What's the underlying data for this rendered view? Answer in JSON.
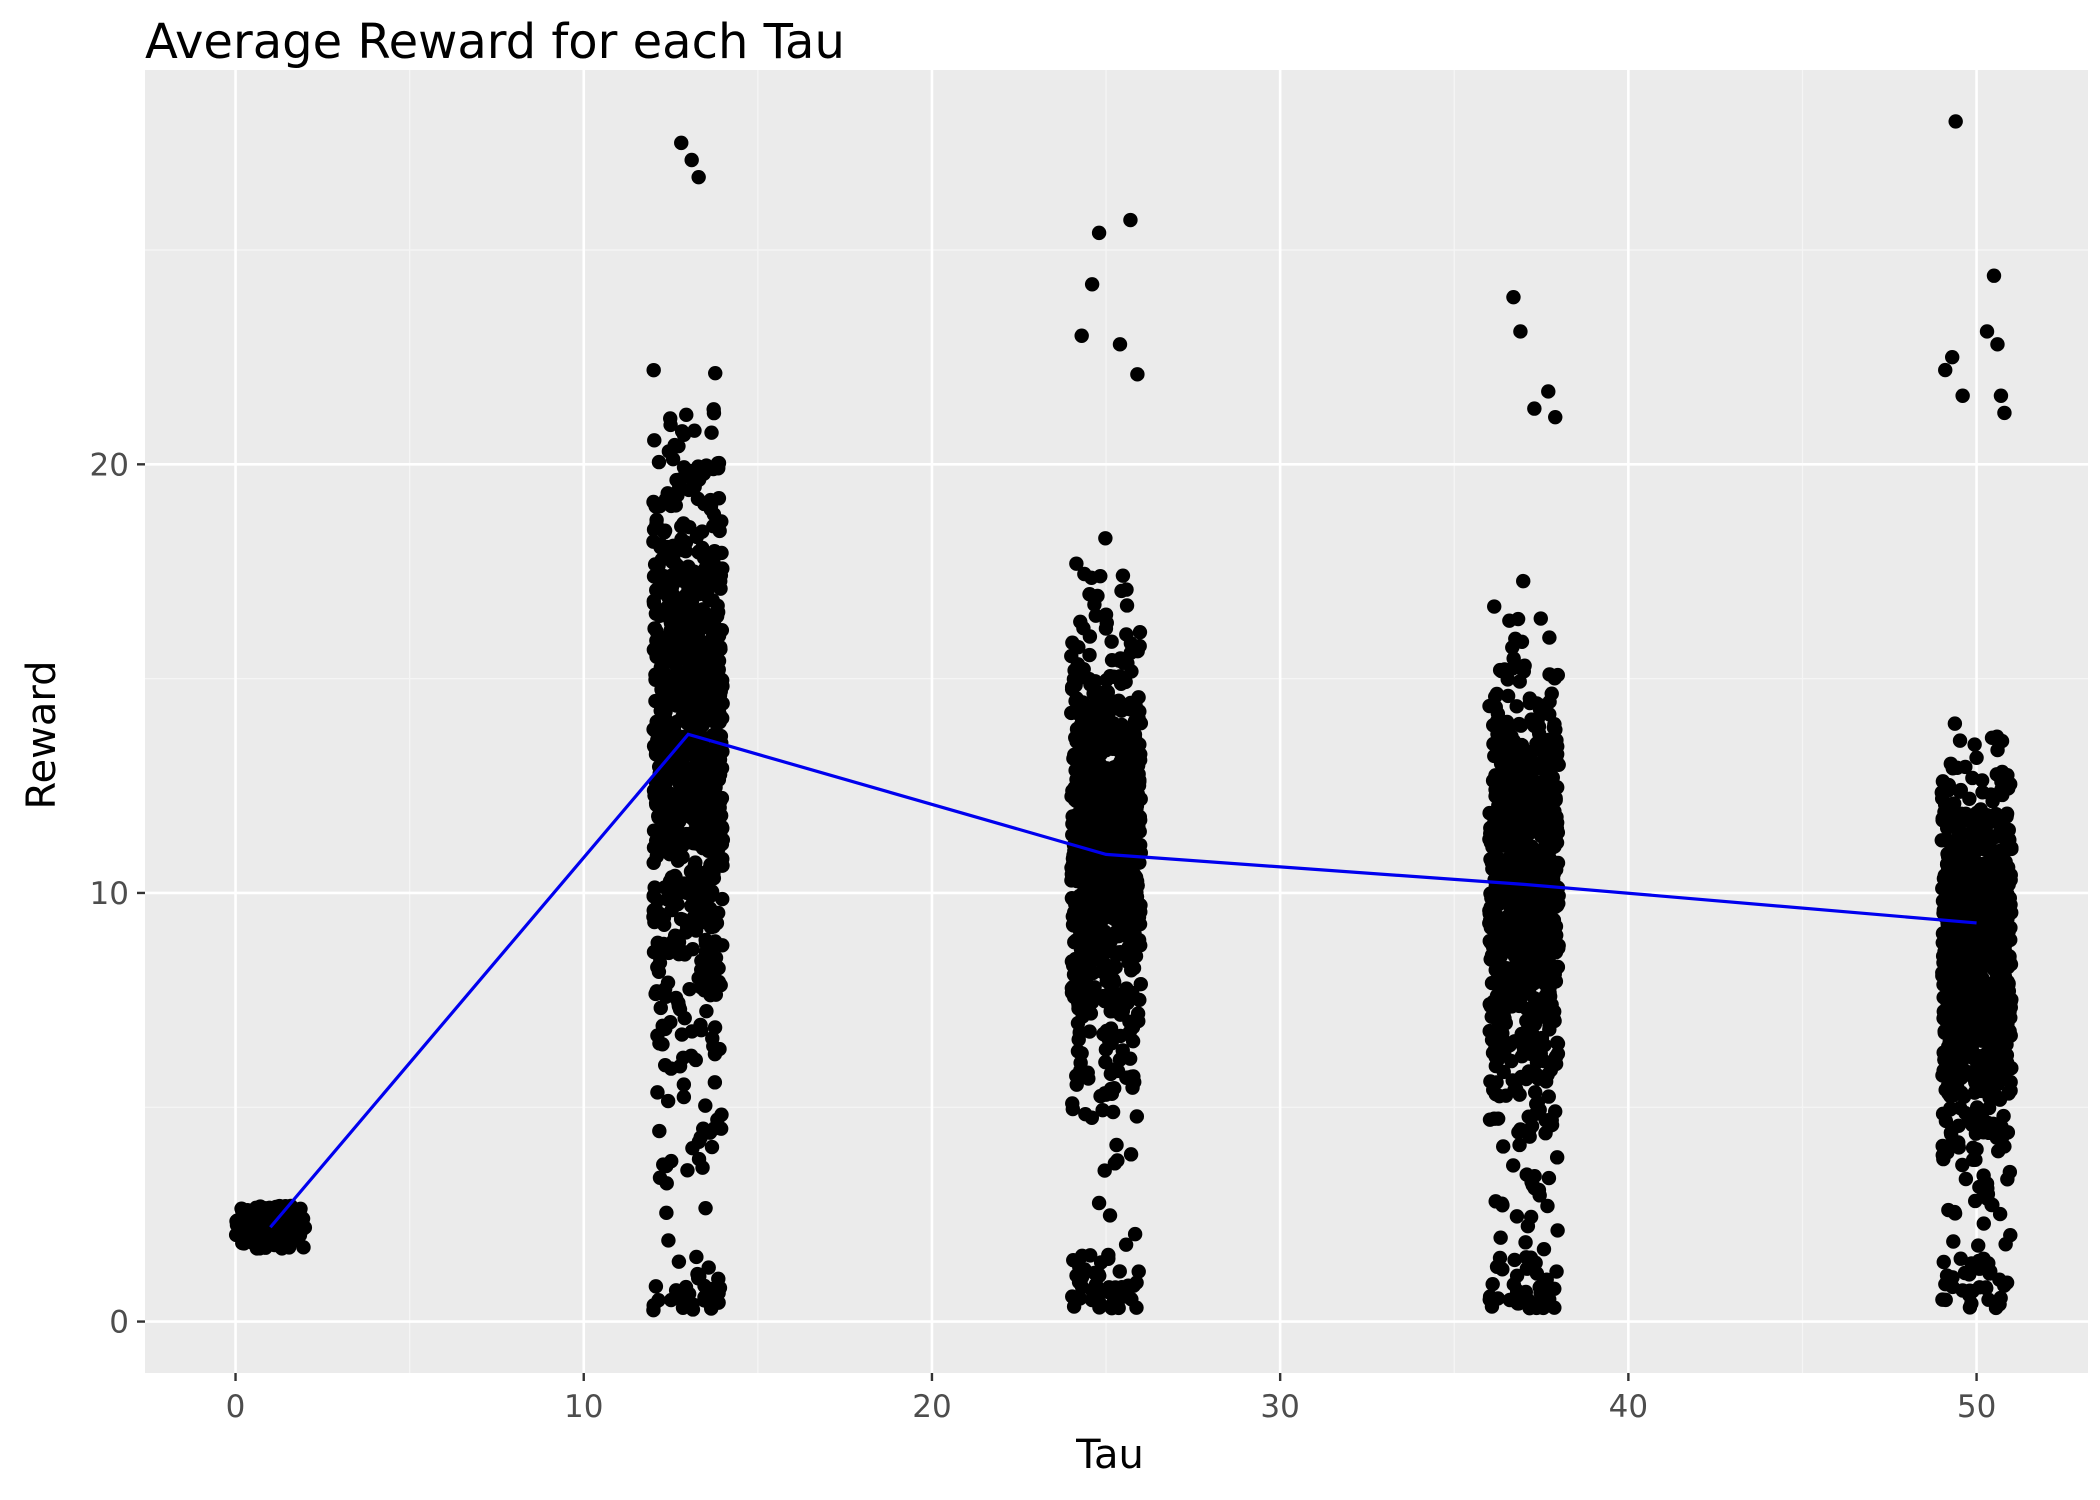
{
  "chart_data": {
    "type": "scatter",
    "title": "Average Reward for each Tau",
    "xlabel": "Tau",
    "ylabel": "Reward",
    "xlim": [
      -2.6,
      53.2
    ],
    "ylim": [
      -1.2,
      29.2
    ],
    "x_ticks": [
      0,
      10,
      20,
      30,
      40,
      50
    ],
    "y_ticks": [
      0,
      10,
      20
    ],
    "grid": true,
    "legend": "none",
    "groups": [
      {
        "tau": 1,
        "jitter_range": [
          0,
          2
        ],
        "approx_min": 1.7,
        "approx_max": 2.7,
        "core_range": [
          1.7,
          2.7
        ],
        "n_approx": 120
      },
      {
        "tau": 13,
        "jitter_range": [
          12,
          14
        ],
        "approx_min": 0.2,
        "approx_max": 27.6,
        "core_range": [
          5.5,
          22.0
        ],
        "n_approx": 900
      },
      {
        "tau": 25,
        "jitter_range": [
          24,
          26
        ],
        "approx_min": 0.3,
        "approx_max": 25.9,
        "core_range": [
          5.0,
          17.5
        ],
        "n_approx": 900
      },
      {
        "tau": 37,
        "jitter_range": [
          36,
          38
        ],
        "approx_min": 0.3,
        "approx_max": 23.9,
        "core_range": [
          4.0,
          16.5
        ],
        "n_approx": 900
      },
      {
        "tau": 50,
        "jitter_range": [
          49,
          51
        ],
        "approx_min": 0.3,
        "approx_max": 28.0,
        "core_range": [
          3.5,
          14.0
        ],
        "n_approx": 900
      }
    ],
    "outliers": [
      {
        "x": 12.8,
        "y": 27.5
      },
      {
        "x": 13.1,
        "y": 27.1
      },
      {
        "x": 13.3,
        "y": 26.7
      },
      {
        "x": 24.8,
        "y": 25.4
      },
      {
        "x": 25.7,
        "y": 25.7
      },
      {
        "x": 24.6,
        "y": 24.2
      },
      {
        "x": 24.3,
        "y": 23.0
      },
      {
        "x": 25.4,
        "y": 22.8
      },
      {
        "x": 25.9,
        "y": 22.1
      },
      {
        "x": 36.7,
        "y": 23.9
      },
      {
        "x": 36.9,
        "y": 23.1
      },
      {
        "x": 37.7,
        "y": 21.7
      },
      {
        "x": 37.3,
        "y": 21.3
      },
      {
        "x": 37.9,
        "y": 21.1
      },
      {
        "x": 49.4,
        "y": 28.0
      },
      {
        "x": 50.5,
        "y": 24.4
      },
      {
        "x": 50.3,
        "y": 23.1
      },
      {
        "x": 50.6,
        "y": 22.8
      },
      {
        "x": 49.3,
        "y": 22.5
      },
      {
        "x": 49.1,
        "y": 22.2
      },
      {
        "x": 50.7,
        "y": 21.6
      },
      {
        "x": 50.8,
        "y": 21.2
      },
      {
        "x": 49.6,
        "y": 21.6
      }
    ],
    "series": [
      {
        "name": "",
        "type": "line",
        "color": "#0000ee",
        "x": [
          1,
          13,
          25,
          37,
          50
        ],
        "y": [
          2.2,
          13.7,
          10.9,
          10.2,
          9.3
        ]
      }
    ],
    "colors": {
      "panel": "#ebebeb",
      "grid_major": "#ffffff",
      "grid_minor": "#f5f5f5",
      "points": "#000000",
      "axis_text": "#4d4d4d",
      "ticks": "#333333"
    }
  }
}
